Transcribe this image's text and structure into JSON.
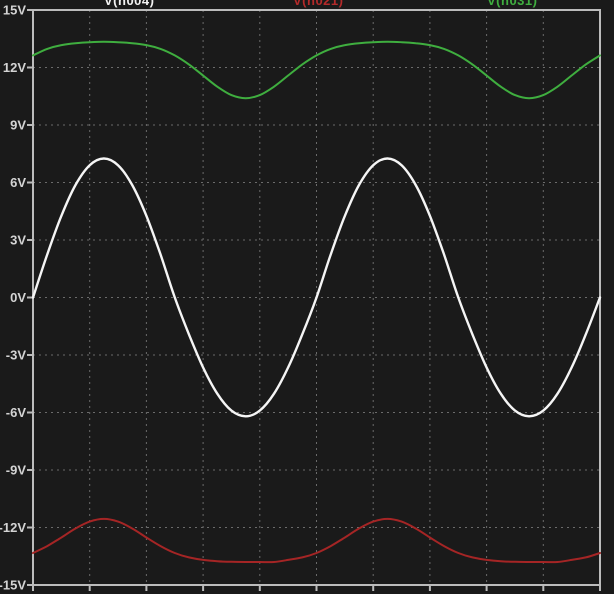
{
  "window": {
    "background": "#1a1a1a",
    "grid_color": "#6b6b6b",
    "frame_color": "#bcbcbc",
    "label_color": "#d4d4d4"
  },
  "legend": {
    "items": [
      {
        "label": "V(n004)",
        "color": "#f2f2f2"
      },
      {
        "label": "V(n021)",
        "color": "#b42a2a"
      },
      {
        "label": "V(n031)",
        "color": "#3fae3f"
      }
    ]
  },
  "y_axis": {
    "unit": "V",
    "ticks": [
      {
        "label": "15V",
        "value": 15
      },
      {
        "label": "12V",
        "value": 12
      },
      {
        "label": "9V",
        "value": 9
      },
      {
        "label": "6V",
        "value": 6
      },
      {
        "label": "3V",
        "value": 3
      },
      {
        "label": "0V",
        "value": 0
      },
      {
        "label": "-3V",
        "value": -3
      },
      {
        "label": "-6V",
        "value": -6
      },
      {
        "label": "-9V",
        "value": -9
      },
      {
        "label": "-12V",
        "value": -12
      },
      {
        "label": "-15V",
        "value": -15
      }
    ]
  },
  "x_axis": {
    "divisions": 10,
    "labels_visible": false
  },
  "chart_data": {
    "type": "line",
    "title": "",
    "xlabel": "",
    "ylabel": "V",
    "grid": true,
    "legend_position": "top",
    "ylim": [
      -15,
      15
    ],
    "ytick_step": 3,
    "x_range": [
      0,
      10
    ],
    "x_step": 0.25,
    "x": [
      0,
      0.25,
      0.5,
      0.75,
      1,
      1.25,
      1.5,
      1.75,
      2,
      2.25,
      2.5,
      2.75,
      3,
      3.25,
      3.5,
      3.75,
      4,
      4.25,
      4.5,
      4.75,
      5,
      5.25,
      5.5,
      5.75,
      6,
      6.25,
      6.5,
      6.75,
      7,
      7.25,
      7.5,
      7.75,
      8,
      8.25,
      8.5,
      8.75,
      9,
      9.25,
      9.5,
      9.75,
      10
    ],
    "series": [
      {
        "name": "V(n004)",
        "color": "#f5f5f5",
        "stroke_width": 2.4,
        "values": [
          0,
          2.24,
          4.26,
          5.87,
          6.9,
          7.25,
          6.9,
          5.87,
          4.26,
          2.24,
          0,
          -1.92,
          -3.65,
          -5.02,
          -5.9,
          -6.2,
          -5.9,
          -5.02,
          -3.65,
          -1.92,
          0,
          2.24,
          4.26,
          5.87,
          6.9,
          7.25,
          6.9,
          5.87,
          4.26,
          2.24,
          0,
          -1.92,
          -3.65,
          -5.02,
          -5.9,
          -6.2,
          -5.9,
          -5.02,
          -3.65,
          -1.92,
          0
        ]
      },
      {
        "name": "V(n021)",
        "color": "#a52525",
        "stroke_width": 2,
        "values": [
          -13.33,
          -12.97,
          -12.52,
          -12.05,
          -11.69,
          -11.55,
          -11.69,
          -12.05,
          -12.52,
          -12.97,
          -13.33,
          -13.56,
          -13.69,
          -13.76,
          -13.79,
          -13.8,
          -13.8,
          -13.8,
          -13.69,
          -13.56,
          -13.33,
          -12.97,
          -12.52,
          -12.05,
          -11.69,
          -11.55,
          -11.69,
          -12.05,
          -12.52,
          -12.97,
          -13.33,
          -13.56,
          -13.69,
          -13.76,
          -13.79,
          -13.8,
          -13.8,
          -13.8,
          -13.69,
          -13.56,
          -13.33
        ]
      },
      {
        "name": "V(n031)",
        "color": "#3fae3f",
        "stroke_width": 2,
        "values": [
          12.63,
          12.97,
          13.17,
          13.27,
          13.32,
          13.34,
          13.32,
          13.27,
          13.17,
          12.97,
          12.63,
          12.16,
          11.58,
          11.0,
          10.56,
          10.4,
          10.56,
          11.0,
          11.58,
          12.16,
          12.63,
          12.97,
          13.17,
          13.27,
          13.32,
          13.34,
          13.32,
          13.27,
          13.17,
          12.97,
          12.63,
          12.16,
          11.58,
          11.0,
          10.56,
          10.4,
          10.56,
          11.0,
          11.58,
          12.16,
          12.63
        ]
      }
    ]
  }
}
